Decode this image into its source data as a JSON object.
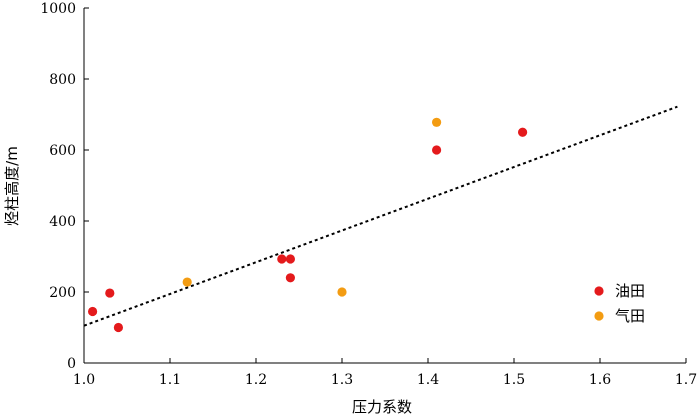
{
  "chart_data": {
    "type": "scatter",
    "xlabel": "压力系数",
    "ylabel": "烃柱高度/m",
    "xlim": [
      1.0,
      1.7
    ],
    "ylim": [
      0,
      1000
    ],
    "xticks": [
      "1.0",
      "1.1",
      "1.2",
      "1.3",
      "1.4",
      "1.5",
      "1.6",
      "1.7"
    ],
    "yticks": [
      "0",
      "200",
      "400",
      "600",
      "800",
      "1000"
    ],
    "grid": false,
    "legend_position": "right",
    "series": [
      {
        "name": "油田",
        "color": "#e41a1c",
        "points": [
          {
            "x": 1.01,
            "y": 145
          },
          {
            "x": 1.03,
            "y": 197
          },
          {
            "x": 1.04,
            "y": 100
          },
          {
            "x": 1.23,
            "y": 293
          },
          {
            "x": 1.24,
            "y": 293
          },
          {
            "x": 1.24,
            "y": 240
          },
          {
            "x": 1.41,
            "y": 600
          },
          {
            "x": 1.51,
            "y": 650
          }
        ]
      },
      {
        "name": "气田",
        "color": "#f39c12",
        "points": [
          {
            "x": 1.12,
            "y": 228
          },
          {
            "x": 1.3,
            "y": 200
          },
          {
            "x": 1.41,
            "y": 678
          }
        ]
      }
    ],
    "trendline": {
      "style": "dotted",
      "color": "#000000",
      "from": {
        "x": 1.0,
        "y": 105
      },
      "to": {
        "x": 1.69,
        "y": 722
      }
    }
  }
}
